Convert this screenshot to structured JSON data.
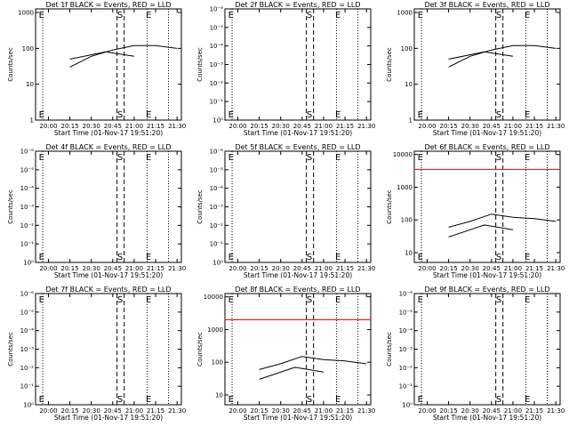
{
  "chart_data": [
    {
      "type": "line",
      "title": "Det 1f BLACK = Events, RED = LLD",
      "xlabel": "Start Time (01-Nov-17 19:51:20)",
      "ylabel": "Counts/sec",
      "x_ticks": [
        "20:00",
        "20:15",
        "20:30",
        "20:45",
        "21:00",
        "21:15",
        "21:30"
      ],
      "y_tick_labels": [
        "1",
        "10",
        "100",
        "1000"
      ],
      "y_tick_values": [
        1,
        10,
        100,
        1000
      ],
      "ylim_log": [
        0,
        3.1
      ],
      "log_y": true,
      "markers": {
        "E_start": "E",
        "S": "S",
        "E_end": "E"
      },
      "series": [
        {
          "color": "#000000",
          "segments": [
            [
              [
                "20:15",
                30
              ],
              [
                "20:30",
                60
              ],
              [
                "20:45",
                90
              ],
              [
                "21:00",
                120
              ],
              [
                "21:15",
                120
              ],
              [
                "21:30",
                100
              ]
            ],
            [
              [
                "20:15",
                50
              ],
              [
                "20:40",
                80
              ],
              [
                "21:00",
                60
              ]
            ]
          ]
        }
      ],
      "red_line": null
    },
    {
      "type": "line",
      "title": "Det 2f BLACK = Events, RED = LLD",
      "xlabel": "Start Time (01-Nov-17 19:51:20)",
      "ylabel": "Counts/sec",
      "x_ticks": [
        "20:00",
        "20:15",
        "20:30",
        "20:45",
        "21:00",
        "21:15",
        "21:30"
      ],
      "y_tick_labels": [
        "10⁰",
        "10⁻¹",
        "10⁻²",
        "10⁻³",
        "10⁻⁴",
        "10⁻⁵",
        "10⁻⁶"
      ],
      "log_y": true,
      "markers": {
        "E_start": "E",
        "S": "S",
        "E_end": "E"
      },
      "series": [],
      "red_line": null
    },
    {
      "type": "line",
      "title": "Det 3f BLACK = Events, RED = LLD",
      "xlabel": "Start Time (01-Nov-17 19:51:20)",
      "ylabel": "Counts/sec",
      "x_ticks": [
        "20:00",
        "20:15",
        "20:30",
        "20:45",
        "21:00",
        "21:15",
        "21:30"
      ],
      "y_tick_labels": [
        "1",
        "10",
        "100",
        "1000"
      ],
      "y_tick_values": [
        1,
        10,
        100,
        1000
      ],
      "ylim_log": [
        0,
        3.1
      ],
      "log_y": true,
      "markers": {
        "E_start": "E",
        "S": "S",
        "E_end": "E"
      },
      "series": [
        {
          "color": "#000000",
          "segments": [
            [
              [
                "20:15",
                30
              ],
              [
                "20:30",
                60
              ],
              [
                "20:45",
                90
              ],
              [
                "21:00",
                120
              ],
              [
                "21:15",
                120
              ],
              [
                "21:30",
                100
              ]
            ],
            [
              [
                "20:15",
                50
              ],
              [
                "20:40",
                80
              ],
              [
                "21:00",
                60
              ]
            ]
          ]
        }
      ],
      "red_line": null
    },
    {
      "type": "line",
      "title": "Det 4f BLACK = Events, RED = LLD",
      "xlabel": "Start Time (01-Nov-17 19:51:20)",
      "ylabel": "Counts/sec",
      "x_ticks": [
        "20:00",
        "20:15",
        "20:30",
        "20:45",
        "21:00",
        "21:15",
        "21:30"
      ],
      "y_tick_labels": [
        "10⁰",
        "10⁻¹",
        "10⁻²",
        "10⁻³",
        "10⁻⁴",
        "10⁻⁵",
        "10⁻⁶"
      ],
      "log_y": true,
      "markers": {
        "E_start": "E",
        "S": "S",
        "E_end": "E"
      },
      "series": [],
      "red_line": null
    },
    {
      "type": "line",
      "title": "Det 5f BLACK = Events, RED = LLD",
      "xlabel": "Start Time (01-Nov-17 19:51:20)",
      "ylabel": "Counts/sec",
      "x_ticks": [
        "20:00",
        "20:15",
        "20:30",
        "20:45",
        "21:00",
        "21:15",
        "21:30"
      ],
      "y_tick_labels": [
        "10⁰",
        "10⁻¹",
        "10⁻²",
        "10⁻³",
        "10⁻⁴",
        "10⁻⁵",
        "10⁻⁶"
      ],
      "log_y": true,
      "markers": {
        "E_start": "E",
        "S": "S",
        "E_end": "E"
      },
      "series": [],
      "red_line": null
    },
    {
      "type": "line",
      "title": "Det 6f BLACK = Events, RED = LLD",
      "xlabel": "Start Time (01-Nov-17 19:51:20)",
      "ylabel": "Counts/sec",
      "x_ticks": [
        "20:00",
        "20:15",
        "20:30",
        "20:45",
        "21:00",
        "21:15",
        "21:30"
      ],
      "y_tick_labels": [
        "10",
        "100",
        "1000",
        "10000"
      ],
      "y_tick_values": [
        10,
        100,
        1000,
        10000
      ],
      "ylim_log": [
        0.7,
        4.1
      ],
      "log_y": true,
      "markers": {
        "E_start": "E",
        "S": "S",
        "E_end": "E"
      },
      "series": [
        {
          "color": "#000000",
          "segments": [
            [
              [
                "20:15",
                60
              ],
              [
                "20:30",
                90
              ],
              [
                "20:45",
                150
              ],
              [
                "21:00",
                120
              ],
              [
                "21:15",
                110
              ],
              [
                "21:30",
                90
              ]
            ],
            [
              [
                "20:15",
                30
              ],
              [
                "20:40",
                70
              ],
              [
                "21:00",
                50
              ]
            ]
          ]
        }
      ],
      "red_line": 3500
    },
    {
      "type": "line",
      "title": "Det 7f BLACK = Events, RED = LLD",
      "xlabel": "Start Time (01-Nov-17 19:51:20)",
      "ylabel": "Counts/sec",
      "x_ticks": [
        "20:00",
        "20:15",
        "20:30",
        "20:45",
        "21:00",
        "21:15",
        "21:30"
      ],
      "y_tick_labels": [
        "10⁰",
        "10⁻¹",
        "10⁻²",
        "10⁻³",
        "10⁻⁴",
        "10⁻⁵",
        "10⁻⁶"
      ],
      "log_y": true,
      "markers": {
        "E_start": "E",
        "S": "S",
        "E_end": "E"
      },
      "series": [],
      "red_line": null
    },
    {
      "type": "line",
      "title": "Det 8f BLACK = Events, RED = LLD",
      "xlabel": "Start Time (01-Nov-17 19:51:20)",
      "ylabel": "Counts/sec",
      "x_ticks": [
        "20:00",
        "20:15",
        "20:30",
        "20:45",
        "21:00",
        "21:15",
        "21:30"
      ],
      "y_tick_labels": [
        "10",
        "100",
        "1000",
        "10000"
      ],
      "y_tick_values": [
        10,
        100,
        1000,
        10000
      ],
      "ylim_log": [
        0.7,
        4.1
      ],
      "log_y": true,
      "markers": {
        "E_start": "E",
        "S": "S",
        "E_end": "E"
      },
      "series": [
        {
          "color": "#000000",
          "segments": [
            [
              [
                "20:15",
                60
              ],
              [
                "20:30",
                90
              ],
              [
                "20:45",
                150
              ],
              [
                "21:00",
                120
              ],
              [
                "21:15",
                110
              ],
              [
                "21:30",
                90
              ]
            ],
            [
              [
                "20:15",
                30
              ],
              [
                "20:40",
                70
              ],
              [
                "21:00",
                50
              ]
            ]
          ]
        }
      ],
      "red_line": 2000
    },
    {
      "type": "line",
      "title": "Det 9f BLACK = Events, RED = LLD",
      "xlabel": "Start Time (01-Nov-17 19:51:20)",
      "ylabel": "Counts/sec",
      "x_ticks": [
        "20:00",
        "20:15",
        "20:30",
        "20:45",
        "21:00",
        "21:15",
        "21:30"
      ],
      "y_tick_labels": [
        "10⁰",
        "10⁻¹",
        "10⁻²",
        "10⁻³",
        "10⁻⁴",
        "10⁻⁵",
        "10⁻⁶"
      ],
      "log_y": true,
      "markers": {
        "E_start": "E",
        "S": "S",
        "E_end": "E"
      },
      "series": [],
      "red_line": null
    }
  ],
  "colors": {
    "events": "#000000",
    "lld": "#e8231b",
    "axis": "#000000",
    "background": "#ffffff"
  }
}
